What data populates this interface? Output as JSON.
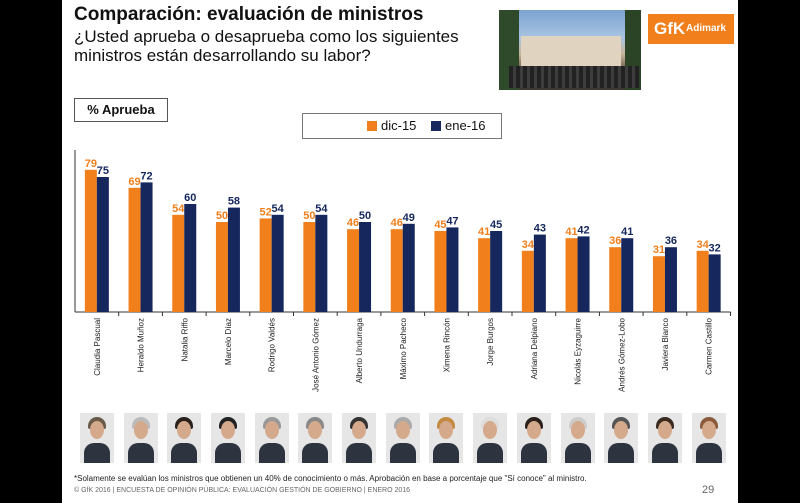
{
  "header": {
    "title": "Comparación: evaluación de ministros",
    "subtitle": "¿Usted aprueba o desaprueba como los siguientes ministros están desarrollando su labor?"
  },
  "logo": {
    "brand": "GfK",
    "sub": "Adimark",
    "color": "#f07f1c"
  },
  "badge": "% Aprueba",
  "chart_data": {
    "type": "bar",
    "categories": [
      "Claudia Pascual",
      "Heraldo Muñoz",
      "Natalia Riffo",
      "Marcelo Díaz",
      "Rodrigo Valdés",
      "José Antonio Gómez",
      "Alberto Undurraga",
      "Máximo Pacheco",
      "Ximena Rincón",
      "Jorge Burgos",
      "Adriana Delpiano",
      "Nicolás Eyzaguirre",
      "Andrés Gómez-Lobo",
      "Javiera Blanco",
      "Carmen Castillo"
    ],
    "series": [
      {
        "name": "dic-15",
        "color": "#f07f1c",
        "values": [
          79,
          69,
          54,
          50,
          52,
          50,
          46,
          46,
          45,
          41,
          34,
          41,
          36,
          31,
          34
        ]
      },
      {
        "name": "ene-16",
        "color": "#15275c",
        "values": [
          75,
          72,
          60,
          58,
          54,
          54,
          50,
          49,
          47,
          45,
          43,
          42,
          41,
          36,
          32
        ]
      }
    ],
    "ylim": [
      0,
      90
    ],
    "grid": false,
    "legend": "top-center"
  },
  "footnote": "*Solamente se evalúan los ministros que obtienen un 40% de conocimiento o más. Aprobación en base a porcentaje que \"Sí conoce\" al ministro.",
  "footer": "© GfK 2016 | ENCUESTA DE OPINIÓN PÚBLICA: EVALUACIÓN GESTIÓN DE GOBIERNO | ENERO 2016",
  "page_number": "29"
}
